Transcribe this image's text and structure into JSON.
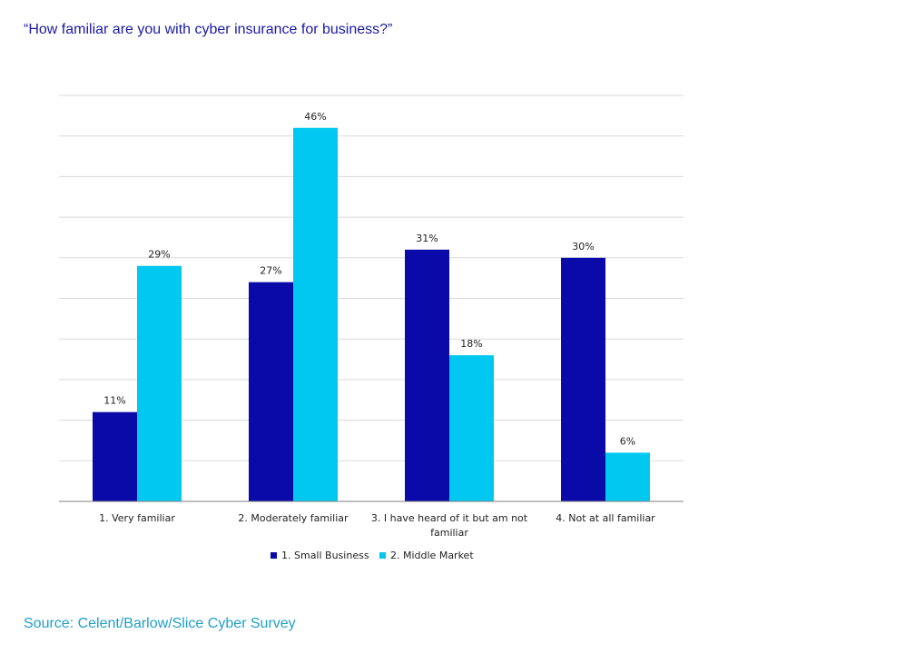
{
  "title": "“How familiar are you with cyber insurance for business?”",
  "source": "Source: Celent/Barlow/Slice  Cyber Survey",
  "chart_data": {
    "type": "bar",
    "title": "“How familiar are you with cyber insurance for business?”",
    "categories": [
      [
        "1. Very familiar"
      ],
      [
        "2. Moderately familiar"
      ],
      [
        "3. I have heard of it but am not",
        "familiar"
      ],
      [
        "4. Not at all familiar"
      ]
    ],
    "series": [
      {
        "name": "1. Small Business",
        "color": "#0a0aa8",
        "values": [
          11,
          27,
          31,
          30
        ],
        "labels": [
          "11%",
          "27%",
          "31%",
          "30%"
        ]
      },
      {
        "name": "2. Middle Market",
        "color": "#00c8f0",
        "values": [
          29,
          46,
          18,
          6
        ],
        "labels": [
          "29%",
          "46%",
          "18%",
          "6%"
        ]
      }
    ],
    "ylim": [
      0,
      50
    ],
    "gridlines": 10,
    "xlabel": "",
    "ylabel": "",
    "legend": "bottom",
    "y_axis_labels_shown": false
  }
}
